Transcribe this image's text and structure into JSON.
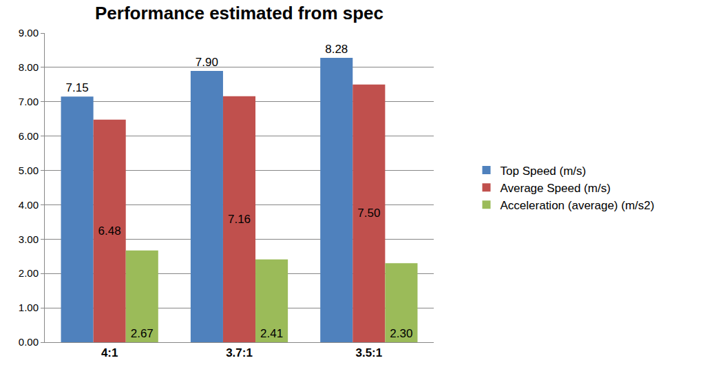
{
  "chart_data": {
    "type": "bar",
    "title": "Performance estimated from spec",
    "categories": [
      "4:1",
      "3.7:1",
      "3.5:1"
    ],
    "series": [
      {
        "name": "Top Speed (m/s)",
        "color": "#4f81bd",
        "values": [
          7.15,
          7.9,
          8.28
        ],
        "value_labels": [
          "7.15",
          "7.90",
          "8.28"
        ]
      },
      {
        "name": "Average Speed (m/s)",
        "color": "#c0504d",
        "values": [
          6.48,
          7.16,
          7.5
        ],
        "value_labels": [
          "6.48",
          "7.16",
          "7.50"
        ]
      },
      {
        "name": "Acceleration (average) (m/s2)",
        "color": "#9bbb59",
        "values": [
          2.67,
          2.41,
          2.3
        ],
        "value_labels": [
          "2.67",
          "2.41",
          "2.30"
        ]
      }
    ],
    "ylim": [
      0,
      9
    ],
    "yticks": [
      {
        "value": 0,
        "label": "0.00"
      },
      {
        "value": 1,
        "label": "1.00"
      },
      {
        "value": 2,
        "label": "2.00"
      },
      {
        "value": 3,
        "label": "3.00"
      },
      {
        "value": 4,
        "label": "4.00"
      },
      {
        "value": 5,
        "label": "5.00"
      },
      {
        "value": 6,
        "label": "6.00"
      },
      {
        "value": 7,
        "label": "7.00"
      },
      {
        "value": 8,
        "label": "8.00"
      },
      {
        "value": 9,
        "label": "9.00"
      }
    ],
    "grid": true,
    "legend": "right",
    "data_labels": true
  }
}
